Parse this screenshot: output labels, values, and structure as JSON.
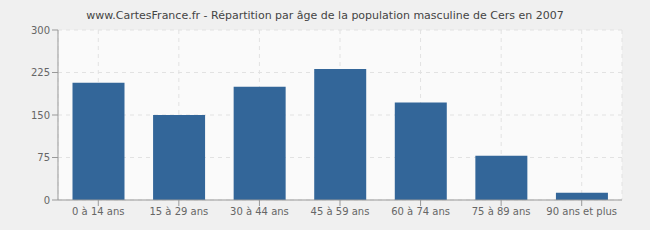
{
  "chart_data": {
    "type": "bar",
    "title": "www.CartesFrance.fr - Répartition par âge de la population masculine de Cers en 2007",
    "categories": [
      "0 à 14 ans",
      "15 à 29 ans",
      "30 à 44 ans",
      "45 à 59 ans",
      "60 à 74 ans",
      "75 à 89 ans",
      "90 ans et plus"
    ],
    "values": [
      207,
      150,
      200,
      231,
      172,
      78,
      13
    ],
    "color": "#336699",
    "ylim": [
      0,
      300
    ],
    "yticks": [
      0,
      75,
      150,
      225,
      300
    ],
    "grid": true
  }
}
